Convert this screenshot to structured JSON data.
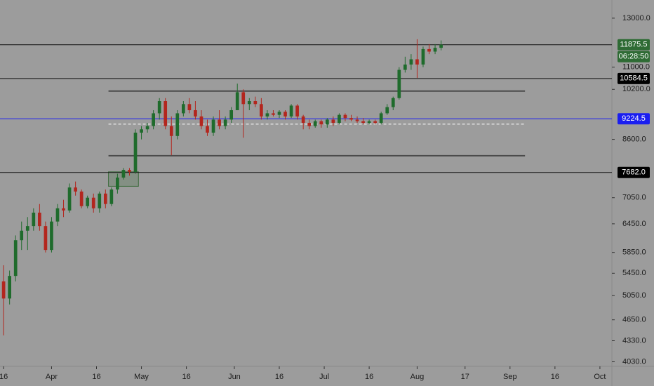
{
  "chart_data": {
    "type": "candlestick",
    "log_scale": true,
    "up_color": "#1f6b2c",
    "down_color": "#b3261e",
    "background": "#9c9c9c",
    "x": [
      15,
      17,
      19,
      21,
      23,
      25,
      27,
      29,
      31,
      33,
      35,
      37,
      39,
      41,
      43,
      45,
      47,
      49,
      51,
      53,
      55,
      57,
      59,
      61,
      63,
      65,
      67,
      69,
      71,
      73,
      75,
      77,
      79,
      81,
      83,
      85,
      87,
      89,
      91,
      93,
      95,
      97,
      99,
      101,
      103,
      105,
      107,
      109,
      111,
      113,
      115,
      117,
      119,
      121,
      123,
      125,
      127,
      129,
      131,
      133,
      135,
      137,
      139,
      141,
      143,
      145,
      147,
      149,
      151,
      153,
      155,
      157,
      159,
      161
    ],
    "open": [
      5300,
      5000,
      5400,
      6100,
      6300,
      6400,
      6700,
      6400,
      5900,
      6500,
      6800,
      6750,
      7300,
      7200,
      6850,
      7050,
      6800,
      7150,
      6900,
      7250,
      7550,
      7750,
      7700,
      8800,
      8900,
      9000,
      9400,
      9800,
      9000,
      8700,
      9400,
      9700,
      9500,
      9300,
      9000,
      8800,
      9200,
      9000,
      9200,
      9500,
      10100,
      9700,
      9800,
      9700,
      9300,
      9400,
      9350,
      9450,
      9300,
      9650,
      9300,
      9100,
      9000,
      9150,
      9050,
      9200,
      9100,
      9350,
      9250,
      9200,
      9150,
      9100,
      9150,
      9100,
      9400,
      9600,
      9900,
      10900,
      11100,
      11300,
      11100,
      11700,
      11600,
      11750
    ],
    "high": [
      5600,
      5500,
      6200,
      6500,
      6600,
      6800,
      6900,
      6500,
      6600,
      6900,
      7000,
      7400,
      7450,
      7250,
      7100,
      7150,
      7200,
      7250,
      7300,
      7650,
      7800,
      7800,
      8900,
      9000,
      9100,
      9500,
      9900,
      9900,
      9300,
      9500,
      9800,
      9900,
      9800,
      9500,
      9200,
      9300,
      9500,
      9300,
      9600,
      10400,
      10200,
      9900,
      9950,
      9900,
      9500,
      9500,
      9500,
      9500,
      9700,
      9700,
      9350,
      9200,
      9200,
      9200,
      9250,
      9300,
      9400,
      9400,
      9350,
      9300,
      9250,
      9200,
      9200,
      9450,
      9700,
      9950,
      11000,
      11400,
      11500,
      12100,
      11800,
      11900,
      11900,
      12050
    ],
    "low": [
      4410,
      4900,
      5300,
      5900,
      5900,
      6300,
      6300,
      5850,
      5850,
      6400,
      6600,
      6700,
      7100,
      6800,
      6800,
      6700,
      6700,
      6800,
      6850,
      7150,
      7500,
      7600,
      7650,
      8600,
      8800,
      8900,
      9200,
      8900,
      8150,
      8600,
      9300,
      9400,
      9200,
      8900,
      8700,
      8700,
      8900,
      8900,
      9100,
      9500,
      8650,
      9500,
      9600,
      9200,
      9200,
      9300,
      9250,
      9200,
      9250,
      9200,
      8900,
      8900,
      8950,
      8950,
      8950,
      9000,
      9050,
      9150,
      9150,
      9100,
      9050,
      9050,
      9050,
      9050,
      9350,
      9500,
      9850,
      10800,
      10900,
      10600,
      11000,
      11500,
      11500,
      11650
    ],
    "close": [
      5000,
      5400,
      6100,
      6300,
      6400,
      6700,
      6400,
      5900,
      6500,
      6800,
      6750,
      7300,
      7200,
      6850,
      7050,
      6800,
      7150,
      6900,
      7250,
      7550,
      7750,
      7700,
      8800,
      8900,
      9000,
      9400,
      9800,
      9000,
      8700,
      9400,
      9700,
      9500,
      9300,
      9000,
      8800,
      9200,
      9000,
      9200,
      9500,
      10100,
      9700,
      9800,
      9700,
      9300,
      9400,
      9350,
      9450,
      9300,
      9650,
      9300,
      9100,
      9000,
      9150,
      9050,
      9200,
      9100,
      9350,
      9250,
      9200,
      9150,
      9100,
      9150,
      9100,
      9400,
      9600,
      9900,
      10900,
      11100,
      11300,
      11100,
      11700,
      11600,
      11750,
      11875.5
    ],
    "xlim": [
      13.8,
      218
    ],
    "xticks": [
      {
        "value": 15,
        "label": "16"
      },
      {
        "value": 31,
        "label": "Apr"
      },
      {
        "value": 46,
        "label": "16"
      },
      {
        "value": 61,
        "label": "May"
      },
      {
        "value": 76,
        "label": "16"
      },
      {
        "value": 92,
        "label": "Jun"
      },
      {
        "value": 107,
        "label": "16"
      },
      {
        "value": 122,
        "label": "Jul"
      },
      {
        "value": 137,
        "label": "16"
      },
      {
        "value": 153,
        "label": "Aug"
      },
      {
        "value": 169,
        "label": "17"
      },
      {
        "value": 184,
        "label": "Sep"
      },
      {
        "value": 199,
        "label": "16"
      },
      {
        "value": 214,
        "label": "Oct"
      }
    ],
    "ylim": [
      3968,
      13830
    ],
    "yticks": [
      {
        "value": 13000,
        "label": "13000.0"
      },
      {
        "value": 11000,
        "label": "11000.0"
      },
      {
        "value": 10200,
        "label": "10200.0"
      },
      {
        "value": 8600,
        "label": "8600.0"
      },
      {
        "value": 7050,
        "label": "7050.0"
      },
      {
        "value": 6450,
        "label": "6450.0"
      },
      {
        "value": 5850,
        "label": "5850.0"
      },
      {
        "value": 5450,
        "label": "5450.0"
      },
      {
        "value": 5050,
        "label": "5050.0"
      },
      {
        "value": 4650,
        "label": "4650.0"
      },
      {
        "value": 4330,
        "label": "4330.0"
      },
      {
        "value": 4030,
        "label": "4030.0"
      }
    ],
    "levels": [
      {
        "value": 11875.5,
        "label": "11875.5",
        "color": "#2e6b34",
        "line_color": "#111111"
      },
      {
        "value": 10584.5,
        "label": "10584.5",
        "color": "#000000",
        "line_color": "#111111"
      },
      {
        "value": 9224.5,
        "label": "9224.5",
        "color": "#1a1ef0",
        "line_color": "#1a1ef0"
      },
      {
        "value": 7682,
        "label": "7682.0",
        "color": "#000000",
        "line_color": "#111111"
      }
    ],
    "countdown": "06:28:50",
    "zone": {
      "x": [
        50,
        189
      ],
      "top": 10140,
      "bottom": 8135,
      "color": "#4a4a4a"
    },
    "dashed_level": {
      "x": [
        50,
        189
      ],
      "value": 9060,
      "color": "#ffffff"
    },
    "box": {
      "x": [
        50,
        60
      ],
      "top": 7700,
      "bottom": 7330,
      "color": "#3c6b3c"
    }
  }
}
